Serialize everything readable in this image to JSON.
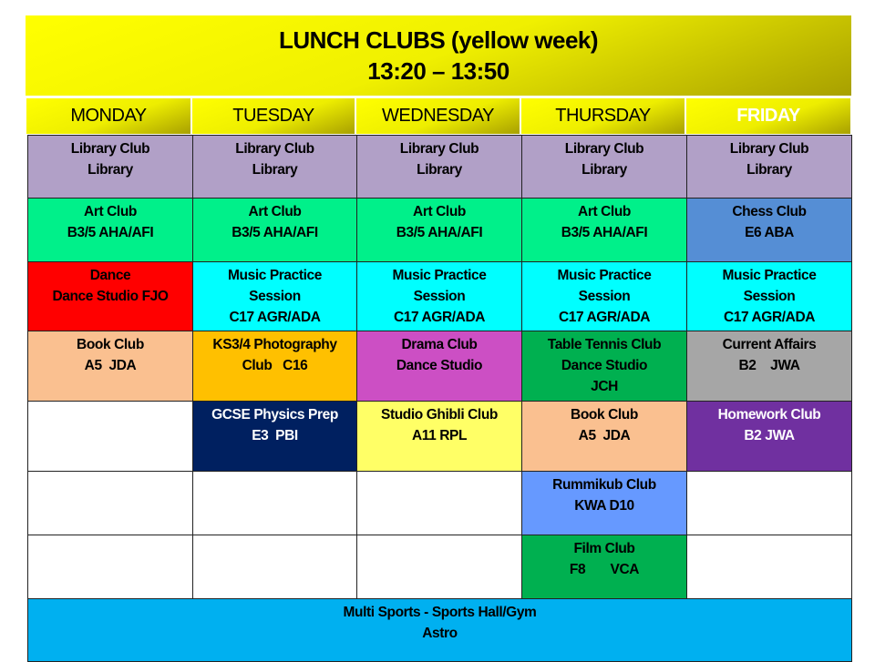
{
  "title": {
    "line1": "LUNCH CLUBS (yellow week)",
    "line2": "13:20 – 13:50"
  },
  "days": [
    "MONDAY",
    "TUESDAY",
    "WEDNESDAY",
    "THURSDAY",
    "FRIDAY"
  ],
  "colors": {
    "header": "#ffff00",
    "library": "#b1a0c7",
    "art": "#00f08a",
    "chess": "#558ed5",
    "dance": "#ff0000",
    "music": "#00ffff",
    "book": "#fac090",
    "photo": "#ffc000",
    "drama": "#cc4fc4",
    "tabletennis": "#00b050",
    "current": "#a6a6a6",
    "physics": "#002060",
    "ghibli": "#ffff66",
    "homework": "#7030a0",
    "rummikub": "#6699ff",
    "film": "#00b050",
    "sports": "#00b0f0",
    "empty": "#ffffff"
  },
  "rows": [
    [
      {
        "text": "Library Club\nLibrary",
        "color": "#b1a0c7"
      },
      {
        "text": "Library Club\nLibrary",
        "color": "#b1a0c7"
      },
      {
        "text": "Library Club\nLibrary",
        "color": "#b1a0c7"
      },
      {
        "text": "Library Club\nLibrary",
        "color": "#b1a0c7"
      },
      {
        "text": "Library Club\nLibrary",
        "color": "#b1a0c7"
      }
    ],
    [
      {
        "text": "Art Club\nB3/5 AHA/AFI",
        "color": "#00f08a"
      },
      {
        "text": "Art Club\nB3/5 AHA/AFI",
        "color": "#00f08a"
      },
      {
        "text": "Art Club\nB3/5 AHA/AFI",
        "color": "#00f08a"
      },
      {
        "text": "Art Club\nB3/5 AHA/AFI",
        "color": "#00f08a"
      },
      {
        "text": "Chess Club\nE6 ABA",
        "color": "#558ed5"
      }
    ],
    [
      {
        "text": "Dance\nDance Studio FJO",
        "color": "#ff0000"
      },
      {
        "text": "Music Practice\nSession\nC17 AGR/ADA",
        "color": "#00ffff"
      },
      {
        "text": "Music Practice\nSession\nC17 AGR/ADA",
        "color": "#00ffff"
      },
      {
        "text": "Music Practice\nSession\nC17 AGR/ADA",
        "color": "#00ffff"
      },
      {
        "text": "Music Practice\nSession\nC17 AGR/ADA",
        "color": "#00ffff"
      }
    ],
    [
      {
        "text": "Book Club\nA5  JDA",
        "color": "#fac090"
      },
      {
        "text": "KS3/4 Photography\nClub   C16",
        "color": "#ffc000"
      },
      {
        "text": "Drama Club\nDance Studio",
        "color": "#cc4fc4"
      },
      {
        "text": "Table Tennis Club\nDance Studio\nJCH",
        "color": "#00b050"
      },
      {
        "text": "Current Affairs\nB2    JWA",
        "color": "#a6a6a6"
      }
    ],
    [
      {
        "text": "",
        "color": "#ffffff"
      },
      {
        "text": "GCSE Physics Prep\nE3  PBI",
        "color": "#002060",
        "light": true
      },
      {
        "text": "Studio Ghibli Club\nA11 RPL",
        "color": "#ffff66"
      },
      {
        "text": "Book Club\nA5  JDA",
        "color": "#fac090"
      },
      {
        "text": "Homework Club\nB2 JWA",
        "color": "#7030a0",
        "light": true
      }
    ],
    [
      {
        "text": "",
        "color": "#ffffff"
      },
      {
        "text": "",
        "color": "#ffffff"
      },
      {
        "text": "",
        "color": "#ffffff"
      },
      {
        "text": "Rummikub Club\nKWA D10",
        "color": "#6699ff"
      },
      {
        "text": "",
        "color": "#ffffff"
      }
    ],
    [
      {
        "text": "",
        "color": "#ffffff"
      },
      {
        "text": "",
        "color": "#ffffff"
      },
      {
        "text": "",
        "color": "#ffffff"
      },
      {
        "text": "Film Club\nF8       VCA",
        "color": "#00b050"
      },
      {
        "text": "",
        "color": "#ffffff"
      }
    ]
  ],
  "footer": {
    "text": "Multi Sports - Sports Hall/Gym\nAstro",
    "color": "#00b0f0"
  }
}
